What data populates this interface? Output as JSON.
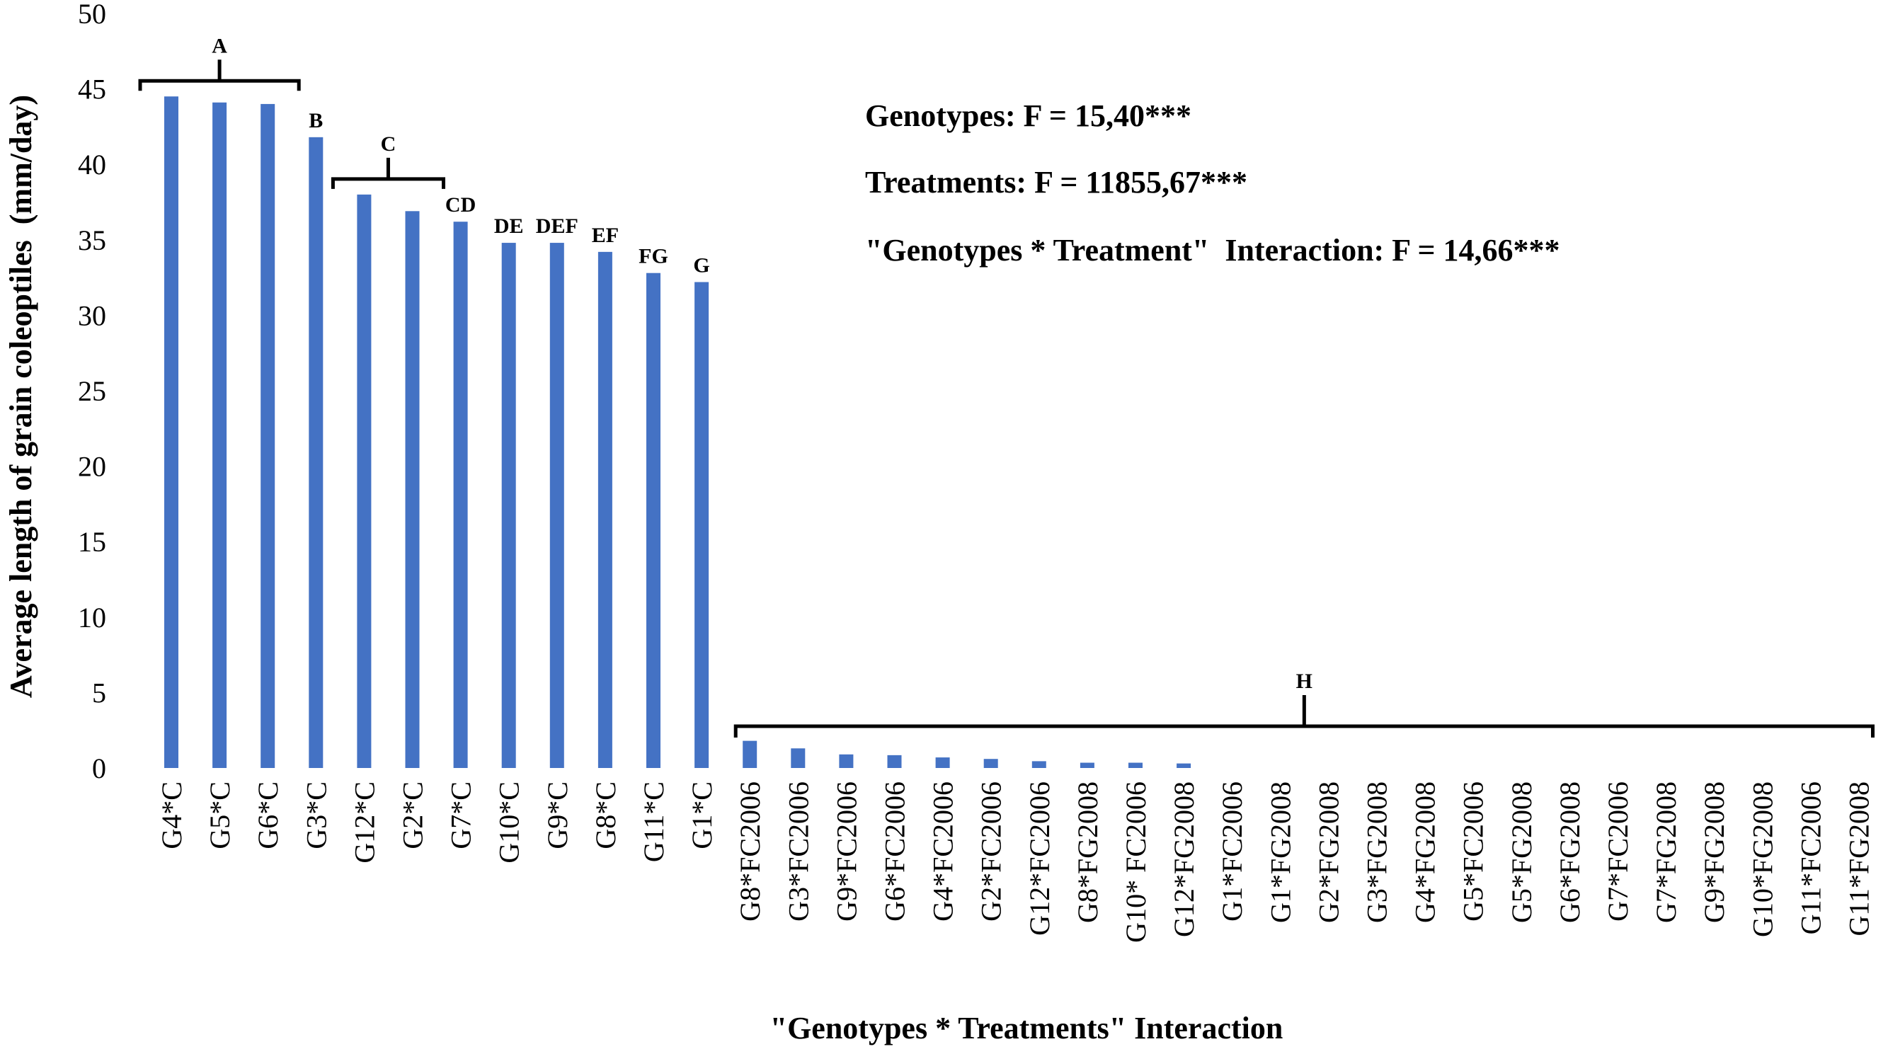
{
  "chart_data": {
    "type": "bar",
    "title": "",
    "xlabel": "\"Genotypes * Treatments\" Interaction",
    "ylabel": "Average length of grain coleoptiles  (mm/day)",
    "ylim": [
      0,
      50
    ],
    "yticks": [
      0,
      5,
      10,
      15,
      20,
      25,
      30,
      35,
      40,
      45,
      50
    ],
    "grid": false,
    "bar_color": "#4472C4",
    "categories": [
      "G4*C",
      "G5*C",
      "G6*C",
      "G3*C",
      "G12*C",
      "G2*C",
      "G7*C",
      "G10*C",
      "G9*C",
      "G8*C",
      "G11*C",
      "G1*C",
      "G8*FC2006",
      "G3*FC2006",
      "G9*FC2006",
      "G6*FC2006",
      "G4*FC2006",
      "G2*FC2006",
      "G12*FC2006",
      "G8*FG2008",
      "G10* FC2006",
      "G12*FG2008",
      "G1*FC2006",
      "G1*FG2008",
      "G2*FG2008",
      "G3*FG2008",
      "G4*FG2008",
      "G5*FC2006",
      "G5*FG2008",
      "G6*FG2008",
      "G7*FC2006",
      "G7*FG2008",
      "G9*FG2008",
      "G10*FG2008",
      "G11*FC2006",
      "G11*FG2008"
    ],
    "values": [
      44.5,
      44.1,
      44.0,
      41.8,
      38.0,
      36.9,
      36.2,
      34.8,
      34.8,
      34.2,
      32.8,
      32.2,
      1.8,
      1.3,
      0.9,
      0.85,
      0.7,
      0.6,
      0.45,
      0.35,
      0.35,
      0.3,
      0,
      0,
      0,
      0,
      0,
      0,
      0,
      0,
      0,
      0,
      0,
      0,
      0,
      0
    ],
    "groups": [
      {
        "label": "A",
        "from": 0,
        "to": 2
      },
      {
        "label": "B",
        "from": 3,
        "to": 3
      },
      {
        "label": "C",
        "from": 4,
        "to": 5
      },
      {
        "label": "CD",
        "from": 6,
        "to": 6
      },
      {
        "label": "DE",
        "from": 7,
        "to": 7
      },
      {
        "label": "DEF",
        "from": 8,
        "to": 8
      },
      {
        "label": "EF",
        "from": 9,
        "to": 9
      },
      {
        "label": "FG",
        "from": 10,
        "to": 10
      },
      {
        "label": "G",
        "from": 11,
        "to": 11
      },
      {
        "label": "H",
        "from": 12,
        "to": 35
      }
    ],
    "annotations": [
      "Genotypes: F = 15,40***",
      "Treatments: F = 11855,67***",
      "\"Genotypes * Treatment\"  Interaction: F = 14,66***"
    ]
  }
}
